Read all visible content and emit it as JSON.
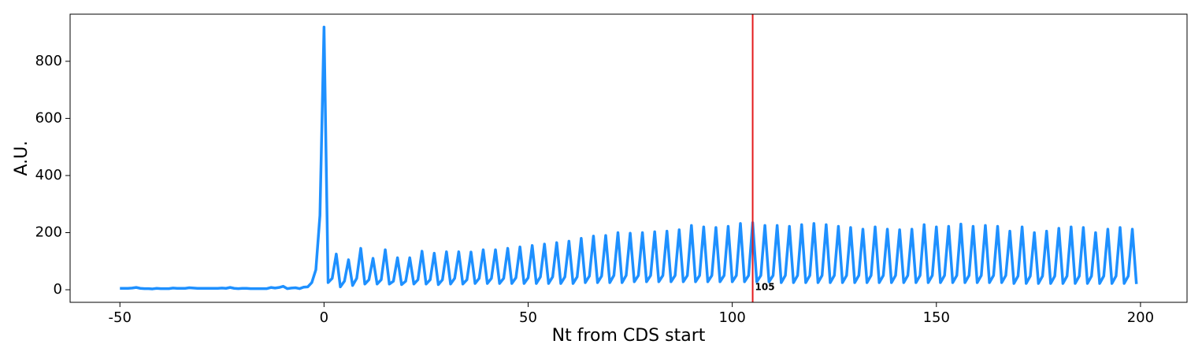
{
  "chart_data": {
    "type": "line",
    "xlabel": "Nt from CDS start",
    "ylabel": "A.U.",
    "xlim": [
      -62.2,
      211.4
    ],
    "ylim": [
      -44,
      965
    ],
    "xticks": [
      -50,
      0,
      50,
      100,
      150,
      200
    ],
    "yticks": [
      0,
      200,
      400,
      600,
      800
    ],
    "vline": 105,
    "vline_color": "#e41a1c",
    "x": [
      -50,
      -49,
      -48,
      -47,
      -46,
      -45,
      -44,
      -43,
      -42,
      -41,
      -40,
      -39,
      -38,
      -37,
      -36,
      -35,
      -34,
      -33,
      -32,
      -31,
      -30,
      -29,
      -28,
      -27,
      -26,
      -25,
      -24,
      -23,
      -22,
      -21,
      -20,
      -19,
      -18,
      -17,
      -16,
      -15,
      -14,
      -13,
      -12,
      -11,
      -10,
      -9,
      -8,
      -7,
      -6,
      -5,
      -4,
      -3,
      -2,
      -1,
      0,
      1,
      2,
      3,
      4,
      5,
      6,
      7,
      8,
      9,
      10,
      11,
      12,
      13,
      14,
      15,
      16,
      17,
      18,
      19,
      20,
      21,
      22,
      23,
      24,
      25,
      26,
      27,
      28,
      29,
      30,
      31,
      32,
      33,
      34,
      35,
      36,
      37,
      38,
      39,
      40,
      41,
      42,
      43,
      44,
      45,
      46,
      47,
      48,
      49,
      50,
      51,
      52,
      53,
      54,
      55,
      56,
      57,
      58,
      59,
      60,
      61,
      62,
      63,
      64,
      65,
      66,
      67,
      68,
      69,
      70,
      71,
      72,
      73,
      74,
      75,
      76,
      77,
      78,
      79,
      80,
      81,
      82,
      83,
      84,
      85,
      86,
      87,
      88,
      89,
      90,
      91,
      92,
      93,
      94,
      95,
      96,
      97,
      98,
      99,
      100,
      101,
      102,
      103,
      104,
      105,
      106,
      107,
      108,
      109,
      110,
      111,
      112,
      113,
      114,
      115,
      116,
      117,
      118,
      119,
      120,
      121,
      122,
      123,
      124,
      125,
      126,
      127,
      128,
      129,
      130,
      131,
      132,
      133,
      134,
      135,
      136,
      137,
      138,
      139,
      140,
      141,
      142,
      143,
      144,
      145,
      146,
      147,
      148,
      149,
      150,
      151,
      152,
      153,
      154,
      155,
      156,
      157,
      158,
      159,
      160,
      161,
      162,
      163,
      164,
      165,
      166,
      167,
      168,
      169,
      170,
      171,
      172,
      173,
      174,
      175,
      176,
      177,
      178,
      179,
      180,
      181,
      182,
      183,
      184,
      185,
      186,
      187,
      188,
      189,
      190,
      191,
      192,
      193,
      194,
      195,
      196,
      197,
      198,
      199
    ],
    "series": [
      {
        "color": "#1e90ff",
        "values": [
          5,
          5,
          5,
          6,
          8,
          5,
          4,
          4,
          3,
          5,
          4,
          4,
          4,
          6,
          5,
          5,
          5,
          7,
          6,
          5,
          5,
          5,
          5,
          5,
          5,
          6,
          5,
          8,
          5,
          4,
          5,
          5,
          4,
          4,
          4,
          4,
          4,
          8,
          6,
          8,
          12,
          4,
          6,
          7,
          4,
          9,
          10,
          25,
          70,
          260,
          920,
          25,
          40,
          125,
          10,
          30,
          105,
          15,
          40,
          145,
          20,
          35,
          110,
          20,
          35,
          140,
          20,
          30,
          112,
          18,
          30,
          112,
          20,
          35,
          135,
          20,
          35,
          128,
          18,
          35,
          133,
          20,
          40,
          133,
          20,
          35,
          132,
          22,
          40,
          140,
          22,
          40,
          140,
          22,
          40,
          145,
          22,
          42,
          150,
          22,
          42,
          155,
          22,
          45,
          160,
          22,
          45,
          165,
          22,
          45,
          170,
          22,
          45,
          180,
          25,
          48,
          188,
          25,
          48,
          190,
          25,
          50,
          200,
          25,
          50,
          198,
          28,
          50,
          200,
          28,
          50,
          203,
          28,
          50,
          205,
          28,
          50,
          210,
          28,
          50,
          225,
          28,
          50,
          220,
          28,
          50,
          218,
          28,
          50,
          222,
          28,
          50,
          232,
          28,
          50,
          235,
          28,
          50,
          225,
          28,
          50,
          225,
          25,
          50,
          222,
          25,
          50,
          228,
          25,
          50,
          232,
          25,
          50,
          228,
          25,
          50,
          222,
          25,
          50,
          218,
          25,
          50,
          212,
          25,
          50,
          220,
          25,
          50,
          212,
          25,
          50,
          210,
          25,
          50,
          212,
          25,
          50,
          228,
          25,
          50,
          220,
          25,
          50,
          222,
          25,
          50,
          230,
          25,
          50,
          222,
          25,
          50,
          225,
          25,
          50,
          222,
          25,
          50,
          205,
          22,
          48,
          220,
          22,
          48,
          200,
          22,
          48,
          205,
          22,
          48,
          215,
          22,
          48,
          220,
          22,
          48,
          218,
          22,
          48,
          200,
          22,
          48,
          212,
          22,
          48,
          218,
          22,
          48,
          212,
          20
        ]
      }
    ]
  }
}
